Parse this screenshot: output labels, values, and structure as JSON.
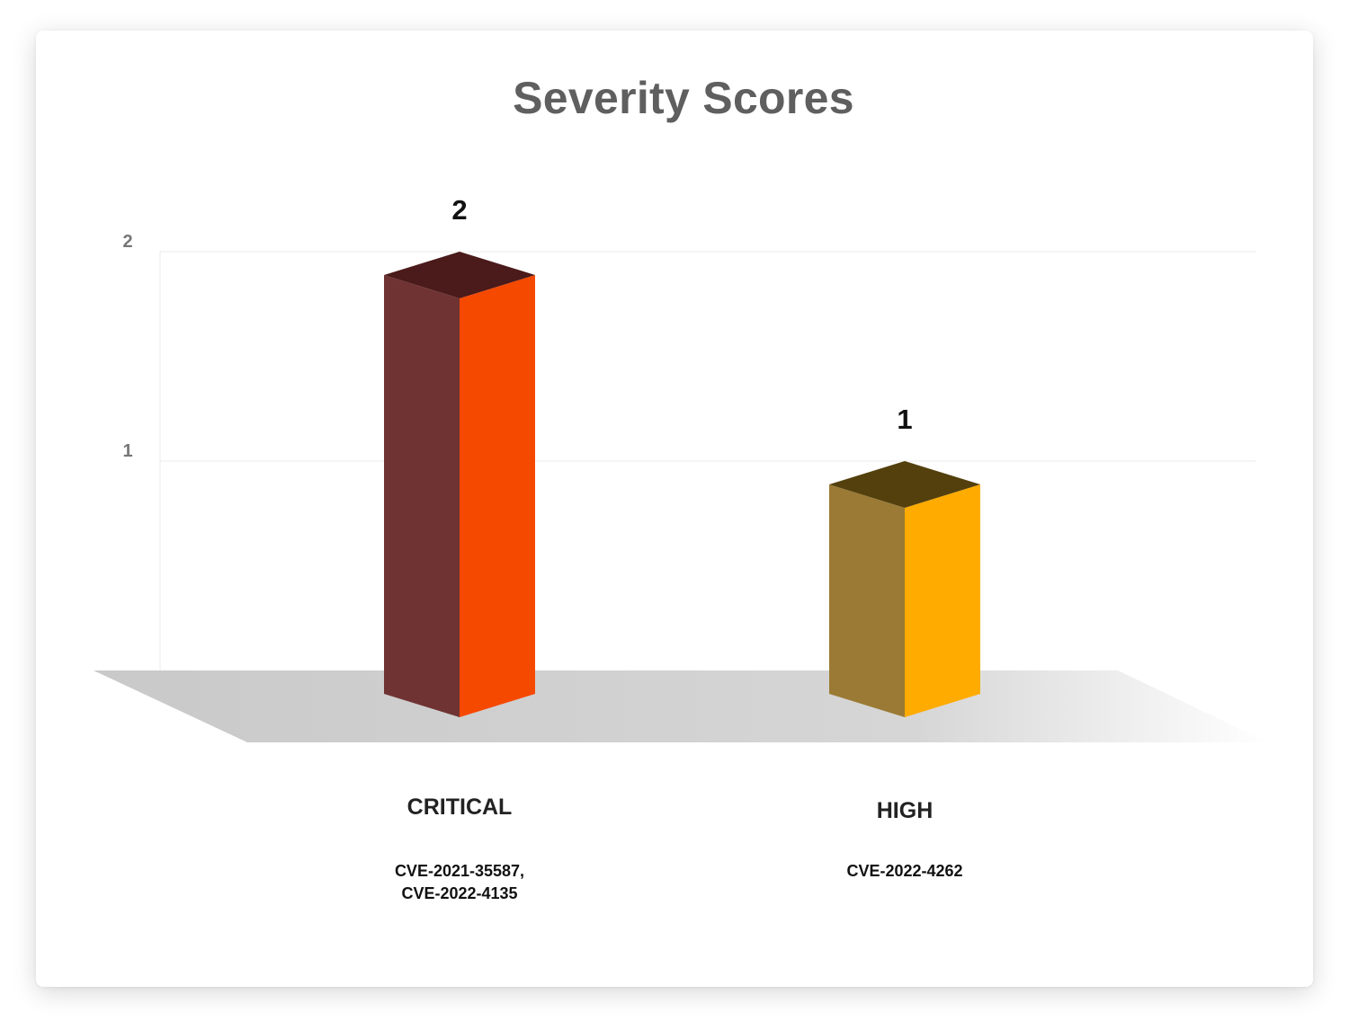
{
  "chart_data": {
    "type": "bar",
    "title": "Severity Scores",
    "categories": [
      "CRITICAL",
      "HIGH"
    ],
    "values": [
      2,
      1
    ],
    "value_labels": [
      "2",
      "1"
    ],
    "cve_lines": [
      [
        "CVE-2021-35587,",
        "CVE-2022-4135"
      ],
      [
        "CVE-2022-4262"
      ]
    ],
    "xlabel": "",
    "ylabel": "",
    "ylim": [
      0,
      2
    ],
    "y_ticks": [
      {
        "value": 1,
        "label": "1"
      },
      {
        "value": 2,
        "label": "2"
      }
    ],
    "grid": true,
    "style": "3d-column",
    "colors": [
      {
        "front": "#f54900",
        "side": "#703333",
        "top": "#4b1a1a"
      },
      {
        "front": "#ffab00",
        "side": "#9b7a35",
        "top": "#53400d"
      }
    ]
  }
}
